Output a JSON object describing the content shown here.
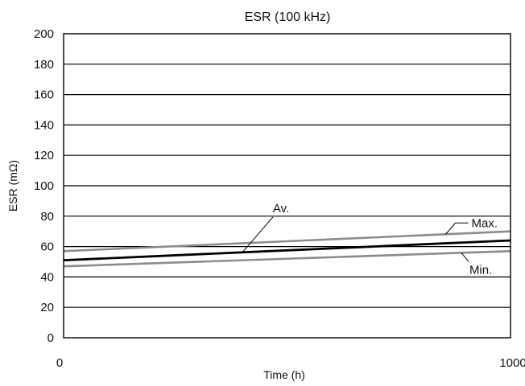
{
  "chart_data": {
    "type": "line",
    "title": "ESR (100 kHz)",
    "xlabel": "Time (h)",
    "ylabel": "ESR (mΩ)",
    "xlim": [
      0,
      1000
    ],
    "ylim": [
      0,
      200
    ],
    "x_ticks": [
      "0",
      "1000"
    ],
    "y_ticks": [
      "0",
      "20",
      "40",
      "60",
      "80",
      "100",
      "120",
      "140",
      "160",
      "180",
      "200"
    ],
    "grid": "horizontal",
    "series": [
      {
        "name": "Max.",
        "color": "#8c8c8c",
        "x": [
          0,
          1000
        ],
        "y": [
          57,
          70
        ]
      },
      {
        "name": "Av.",
        "color": "#000000",
        "x": [
          0,
          1000
        ],
        "y": [
          51,
          64
        ]
      },
      {
        "name": "Min.",
        "color": "#8c8c8c",
        "x": [
          0,
          1000
        ],
        "y": [
          47,
          57
        ]
      }
    ]
  }
}
